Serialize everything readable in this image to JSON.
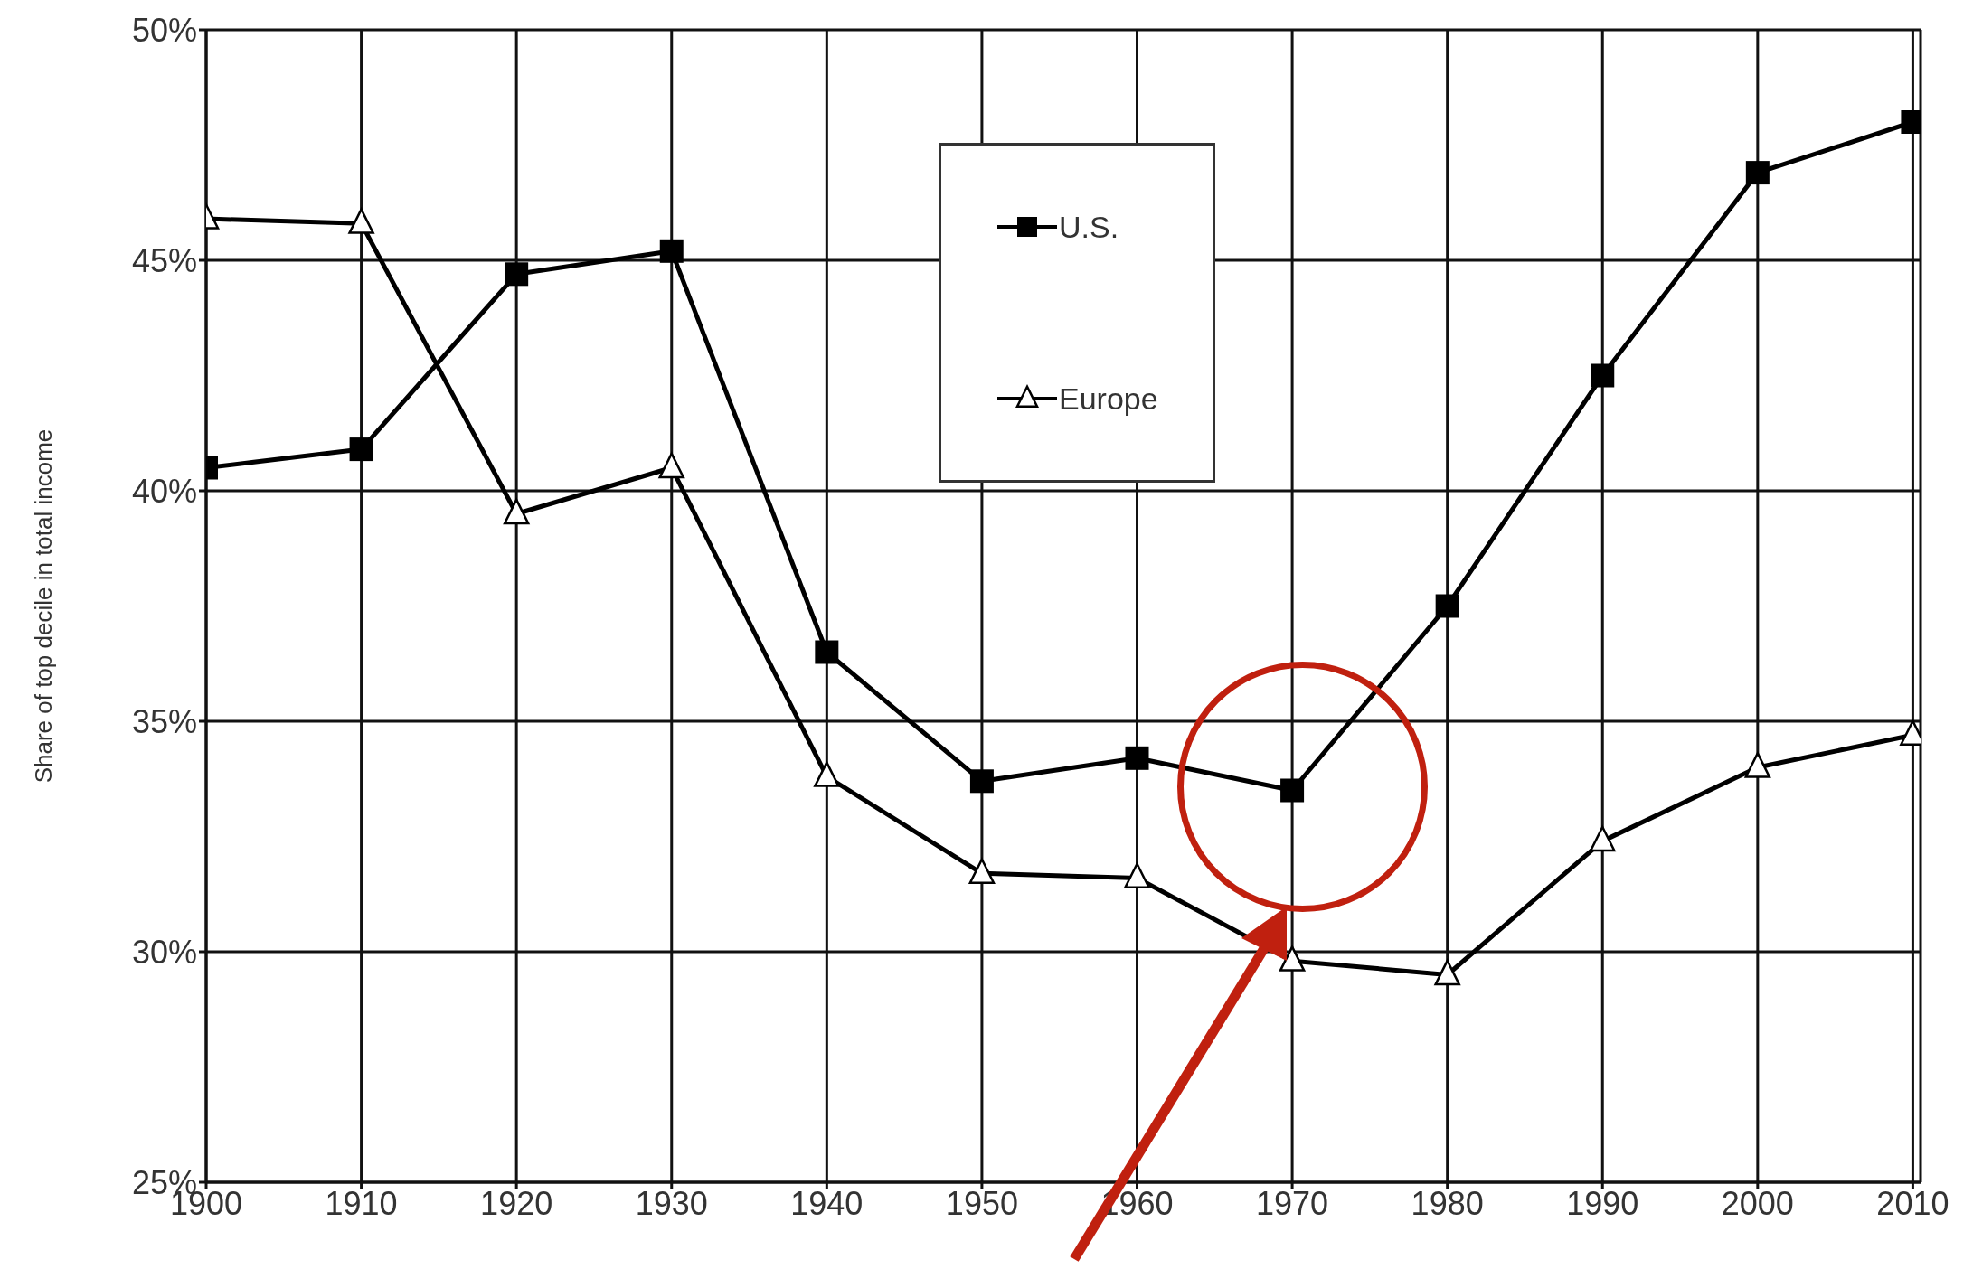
{
  "chart_data": {
    "type": "line",
    "ylabel": "Share of top decile in total income",
    "x": [
      1900,
      1910,
      1920,
      1930,
      1940,
      1950,
      1960,
      1970,
      1980,
      1990,
      2000,
      2010
    ],
    "series": [
      {
        "name": "U.S.",
        "color": "#000000",
        "marker": "square",
        "values": [
          40.5,
          40.9,
          44.7,
          45.2,
          36.5,
          33.7,
          34.2,
          33.5,
          37.5,
          42.5,
          46.9,
          48.0
        ]
      },
      {
        "name": "Europe",
        "color": "#000000",
        "marker": "triangle",
        "values": [
          45.9,
          45.8,
          39.5,
          40.5,
          33.8,
          31.7,
          31.6,
          29.8,
          29.5,
          32.4,
          34.0,
          34.7
        ]
      }
    ],
    "xlim": [
      1900,
      2010.5
    ],
    "xticks": [
      1900,
      1910,
      1920,
      1930,
      1940,
      1950,
      1960,
      1970,
      1980,
      1990,
      2000,
      2010
    ],
    "ylim": [
      25,
      50
    ],
    "yticks": [
      {
        "value": 25,
        "label": "25%"
      },
      {
        "value": 30,
        "label": "30%"
      },
      {
        "value": 35,
        "label": "35%"
      },
      {
        "value": 40,
        "label": "40%"
      },
      {
        "value": 45,
        "label": "45%"
      },
      {
        "value": 50,
        "label": "50%"
      }
    ],
    "grid": true,
    "legend": "top",
    "line_style": "solid"
  }
}
